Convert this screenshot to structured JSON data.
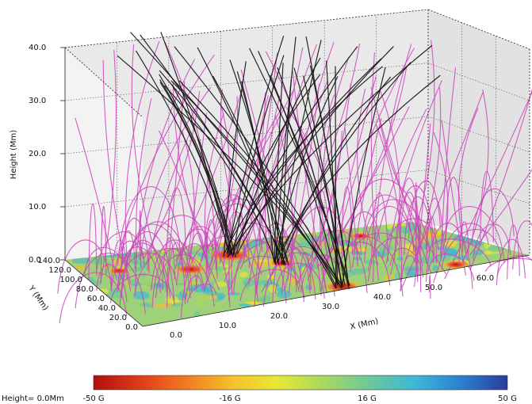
{
  "axes": {
    "z_label": "Height (Mm)",
    "y_label": "Y (Mm)",
    "x_label": "X (Mm)",
    "z_ticks": [
      "40.0",
      "30.0",
      "20.0",
      "10.0",
      "0.0"
    ],
    "y_ticks": [
      "140.0",
      "120.0",
      "100.0",
      "80.0",
      "60.0",
      "40.0",
      "20.0",
      "0.0"
    ],
    "x_ticks": [
      "0.0",
      "10.0",
      "20.0",
      "30.0",
      "40.0",
      "50.0",
      "60.0"
    ]
  },
  "colorbar": {
    "height_label": "Height= 0.0Mm",
    "tick_labels": [
      "-50 G",
      "-16 G",
      "16 G",
      "50 G"
    ],
    "colors": [
      "#b01010",
      "#e03a1a",
      "#f07a22",
      "#f5c02a",
      "#e8e835",
      "#a8d860",
      "#6cc89a",
      "#3cb8d8",
      "#2c7fd0",
      "#2a3d9a"
    ]
  },
  "legend_colors": {
    "closed_field_lines": "#cc44bb",
    "open_field_lines": "#111111",
    "box_edges": "#222222"
  }
}
